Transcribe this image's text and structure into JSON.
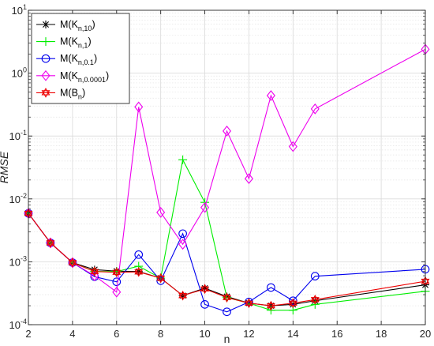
{
  "chart_data": {
    "type": "line",
    "xlabel": "n",
    "ylabel": "RMSE",
    "yscale": "log",
    "xlim": [
      2,
      20
    ],
    "ylim": [
      0.0001,
      10
    ],
    "grid": true,
    "legend_position": "top-left",
    "x_ticks": [
      2,
      4,
      6,
      8,
      10,
      12,
      14,
      16,
      18,
      20
    ],
    "y_tick_exponents": [
      -4,
      -3,
      -2,
      -1,
      0,
      1
    ],
    "y_tick_base": "10",
    "series": [
      {
        "name_main": "M(K",
        "name_sub": "n,10",
        "name_close": ")",
        "color": "#000000",
        "marker": "asterisk",
        "x": [
          2,
          3,
          4,
          5,
          6,
          7,
          8,
          9,
          10,
          11,
          12,
          13,
          14,
          15,
          20
        ],
        "y": [
          0.0059,
          0.002,
          0.00097,
          0.00075,
          0.00071,
          0.0007,
          0.00055,
          0.00029,
          0.00038,
          0.00028,
          0.00022,
          0.0002,
          0.00021,
          0.00024,
          0.00043
        ]
      },
      {
        "name_main": "M(K",
        "name_sub": "n,1",
        "name_close": ")",
        "color": "#00ee00",
        "marker": "plus",
        "x": [
          2,
          3,
          4,
          5,
          6,
          7,
          8,
          9,
          10,
          11,
          12,
          13,
          14,
          15,
          20
        ],
        "y": [
          0.0059,
          0.002,
          0.00097,
          0.0007,
          0.0007,
          0.00085,
          0.00055,
          0.042,
          0.0088,
          0.00027,
          0.00022,
          0.00017,
          0.00017,
          0.00021,
          0.00034
        ]
      },
      {
        "name_main": "M(K",
        "name_sub": "n,0.1",
        "name_close": ")",
        "color": "#0000ee",
        "marker": "circle",
        "x": [
          2,
          3,
          4,
          5,
          6,
          7,
          8,
          9,
          10,
          11,
          12,
          13,
          14,
          15,
          20
        ],
        "y": [
          0.0059,
          0.002,
          0.00097,
          0.00058,
          0.00048,
          0.0013,
          0.0005,
          0.0028,
          0.00021,
          0.00016,
          0.00023,
          0.00039,
          0.00024,
          0.00059,
          0.00076
        ]
      },
      {
        "name_main": "M(K",
        "name_sub": "n,0.0001",
        "name_close": ")",
        "color": "#ee00ee",
        "marker": "diamond",
        "x": [
          2,
          3,
          4,
          5,
          6,
          7,
          8,
          9,
          10,
          11,
          12,
          13,
          14,
          15,
          20
        ],
        "y": [
          0.0059,
          0.002,
          0.00097,
          0.0006,
          0.00033,
          0.29,
          0.0061,
          0.0019,
          0.0073,
          0.12,
          0.021,
          0.44,
          0.068,
          0.27,
          2.4
        ]
      },
      {
        "name_main": "M(B",
        "name_sub": "n",
        "name_close": ")",
        "color": "#ee0000",
        "marker": "hexagram",
        "x": [
          2,
          3,
          4,
          5,
          6,
          7,
          8,
          9,
          10,
          11,
          12,
          13,
          14,
          15,
          20
        ],
        "y": [
          0.0059,
          0.002,
          0.00097,
          0.0007,
          0.00068,
          0.00069,
          0.00055,
          0.00029,
          0.00037,
          0.00027,
          0.00022,
          0.0002,
          0.00022,
          0.00025,
          0.00049
        ]
      }
    ]
  }
}
